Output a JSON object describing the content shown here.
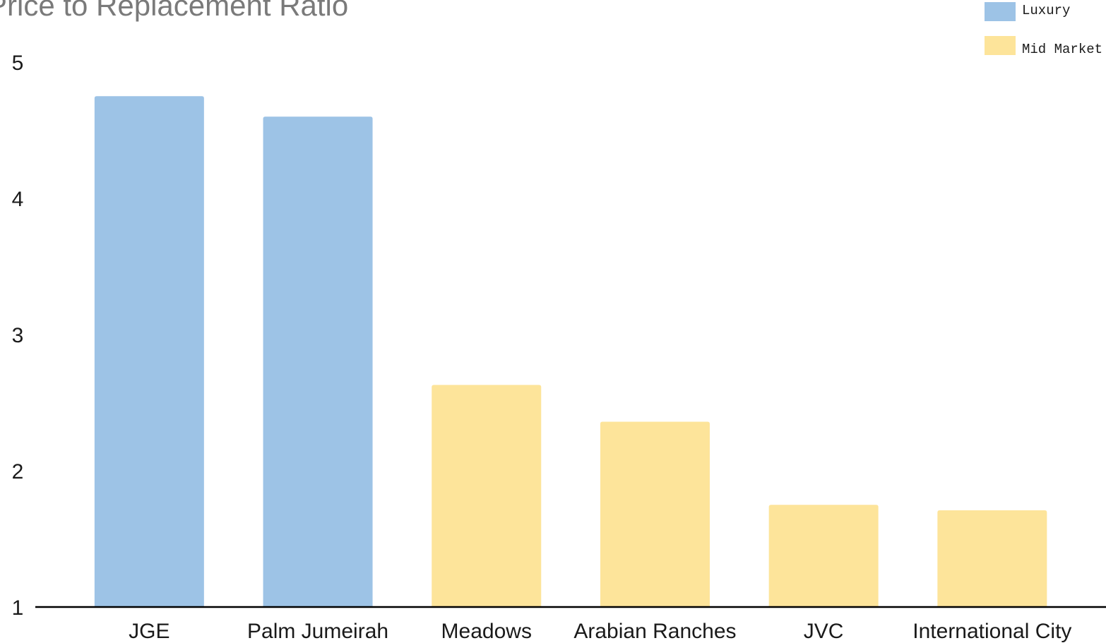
{
  "chart_data": {
    "type": "bar",
    "title": "Price to Replacement Ratio",
    "xlabel": "",
    "ylabel": "",
    "categories": [
      "JGE",
      "Palm Jumeirah",
      "Meadows",
      "Arabian Ranches",
      "JVC",
      "International City"
    ],
    "values": [
      4.75,
      4.6,
      2.63,
      2.36,
      1.75,
      1.71
    ],
    "groups": [
      "Luxury",
      "Luxury",
      "Mid Market",
      "Mid Market",
      "Mid Market",
      "Mid Market"
    ],
    "yticks": [
      1,
      2,
      3,
      4,
      5
    ],
    "ylim": [
      1,
      5
    ],
    "grid": false,
    "legend": {
      "placement": "top-right",
      "entries": [
        {
          "name": "Luxury",
          "color": "#9dc3e6"
        },
        {
          "name": "Mid Market",
          "color": "#fde49a"
        }
      ]
    }
  },
  "colors": {
    "axis": "#000000",
    "title": "#7a7a7a"
  }
}
